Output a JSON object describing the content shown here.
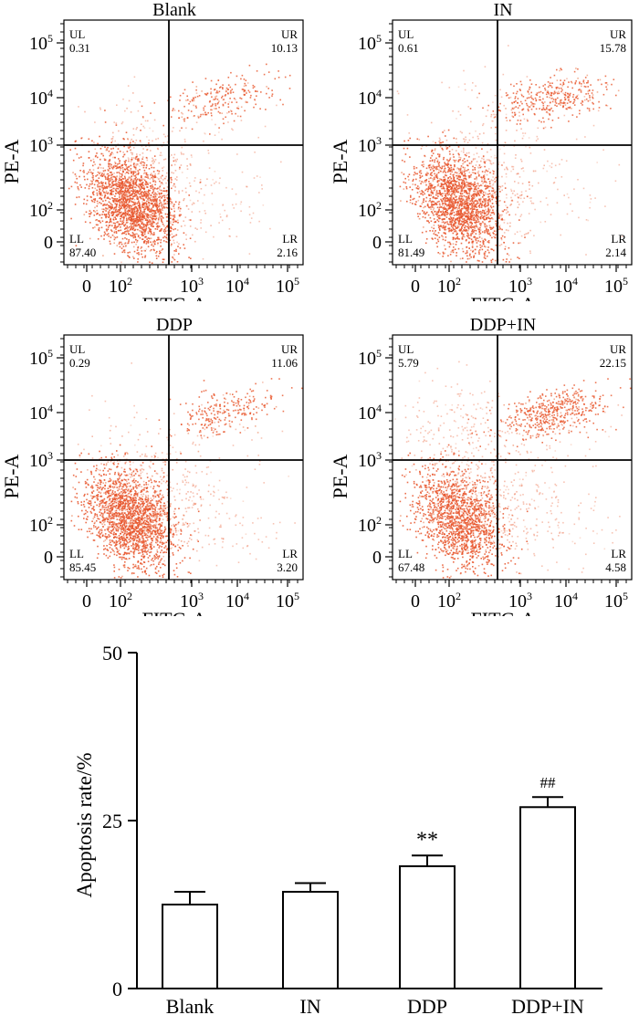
{
  "chart_data": [
    {
      "type": "scatter",
      "title": "Blank",
      "xlabel": "FITC-A",
      "ylabel": "PE-A",
      "x_ticks": [
        "0",
        "10^2",
        "10^3",
        "10^4",
        "10^5"
      ],
      "y_ticks": [
        "0",
        "10^2",
        "10^3",
        "10^4",
        "10^5"
      ],
      "quadrants": {
        "UL": "0.31",
        "UR": "10.13",
        "LL": "87.40",
        "LR": "2.16"
      },
      "point_color": "#e8552b"
    },
    {
      "type": "scatter",
      "title": "IN",
      "xlabel": "FITC-A",
      "ylabel": "PE-A",
      "x_ticks": [
        "0",
        "10^2",
        "10^3",
        "10^4",
        "10^5"
      ],
      "y_ticks": [
        "0",
        "10^2",
        "10^3",
        "10^4",
        "10^5"
      ],
      "quadrants": {
        "UL": "0.61",
        "UR": "15.78",
        "LL": "81.49",
        "LR": "2.14"
      },
      "point_color": "#e8552b"
    },
    {
      "type": "scatter",
      "title": "DDP",
      "xlabel": "FITC-A",
      "ylabel": "PE-A",
      "x_ticks": [
        "0",
        "10^2",
        "10^3",
        "10^4",
        "10^5"
      ],
      "y_ticks": [
        "0",
        "10^2",
        "10^3",
        "10^4",
        "10^5"
      ],
      "quadrants": {
        "UL": "0.29",
        "UR": "11.06",
        "LL": "85.45",
        "LR": "3.20"
      },
      "point_color": "#e8552b"
    },
    {
      "type": "scatter",
      "title": "DDP+IN",
      "xlabel": "FITC-A",
      "ylabel": "PE-A",
      "x_ticks": [
        "0",
        "10^2",
        "10^3",
        "10^4",
        "10^5"
      ],
      "y_ticks": [
        "0",
        "10^2",
        "10^3",
        "10^4",
        "10^5"
      ],
      "quadrants": {
        "UL": "5.79",
        "UR": "22.15",
        "LL": "67.48",
        "LR": "4.58"
      },
      "point_color": "#e8552b"
    },
    {
      "type": "bar",
      "categories": [
        "Blank",
        "IN",
        "DDP",
        "DDP+IN"
      ],
      "values": [
        12.5,
        14.4,
        18.2,
        27.0
      ],
      "errors": [
        1.9,
        1.3,
        1.6,
        1.5
      ],
      "annotations": [
        "",
        "",
        "**",
        "##"
      ],
      "ylabel": "Apoptosis rate/%",
      "ylim": [
        0,
        50
      ],
      "yticks": [
        "0",
        "25",
        "50"
      ],
      "bar_color": "#ffffff"
    }
  ]
}
